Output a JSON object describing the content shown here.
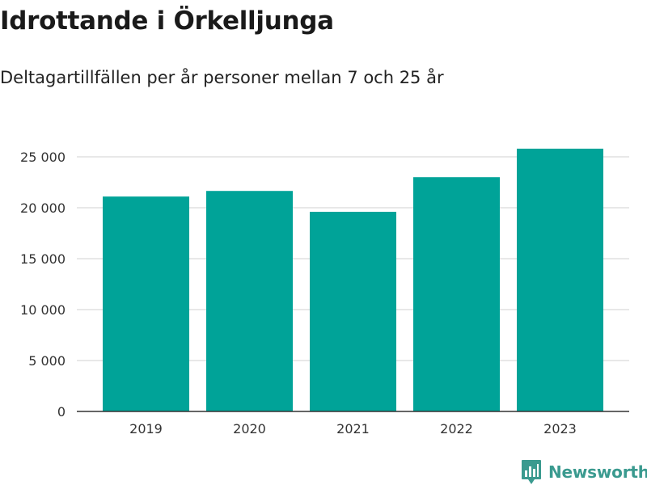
{
  "title": "Idrottande i Örkelljunga",
  "subtitle": "Deltagartillfällen per år personer mellan 7 och 25 år",
  "brand": {
    "name": "Newsworthy",
    "icon": "newsworthy-logo-icon",
    "color": "#3a9a8f"
  },
  "colors": {
    "bar": "#00a398",
    "grid": "#e0e0e0",
    "axis": "#333333",
    "text": "#333333"
  },
  "chart_data": {
    "type": "bar",
    "title": "Idrottande i Örkelljunga",
    "subtitle": "Deltagartillfällen per år personer mellan 7 och 25 år",
    "xlabel": "",
    "ylabel": "",
    "categories": [
      "2019",
      "2020",
      "2021",
      "2022",
      "2023"
    ],
    "values": [
      21100,
      21650,
      19600,
      23000,
      25800
    ],
    "ylim": [
      0,
      27500
    ],
    "yticks": [
      0,
      5000,
      10000,
      15000,
      20000,
      25000
    ],
    "ytick_labels": [
      "0",
      "5 000",
      "10 000",
      "15 000",
      "20 000",
      "25 000"
    ],
    "grid": true,
    "legend": "none"
  }
}
